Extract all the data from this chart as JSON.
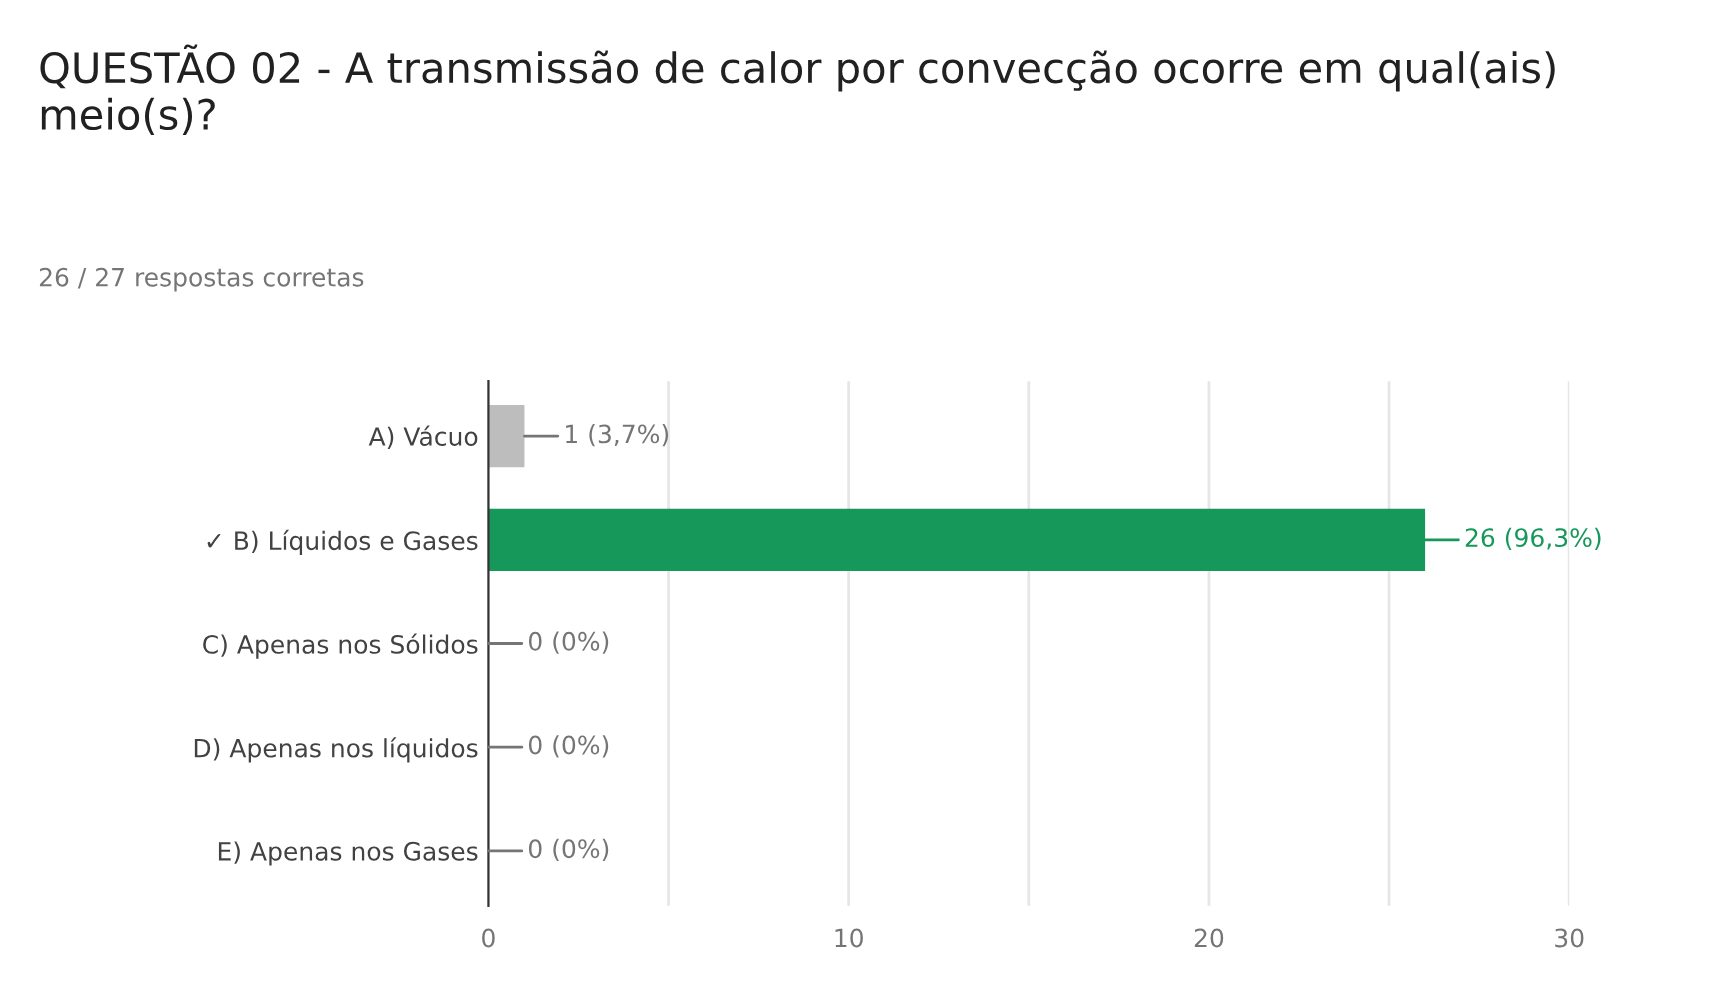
{
  "chart_data": {
    "type": "bar",
    "orientation": "horizontal",
    "title": "QUESTÃO 02 - A transmissão de calor por convecção ocorre em qual(ais) meio(s)?",
    "subtitle": "26 / 27 respostas corretas",
    "categories": [
      "A) Vácuo",
      "✓ B) Líquidos e Gases",
      "C) Apenas nos Sólidos",
      "D) Apenas nos líquidos",
      "E) Apenas nos Gases"
    ],
    "values": [
      1,
      26,
      0,
      0,
      0
    ],
    "colors": [
      "#bdbdbd",
      "#16985a",
      "#bdbdbd",
      "#bdbdbd",
      "#bdbdbd"
    ],
    "value_labels": [
      "1 (3,7%)",
      "26 (96,3%)",
      "0 (0%)",
      "0 (0%)",
      "0 (0%)"
    ],
    "xlim": [
      0,
      30
    ],
    "xticks": [
      0,
      {
        "value": 5,
        "label": null
      },
      10,
      {
        "value": 15,
        "label": null
      },
      20,
      {
        "value": 25,
        "label": null
      },
      30
    ],
    "grid": "x"
  }
}
